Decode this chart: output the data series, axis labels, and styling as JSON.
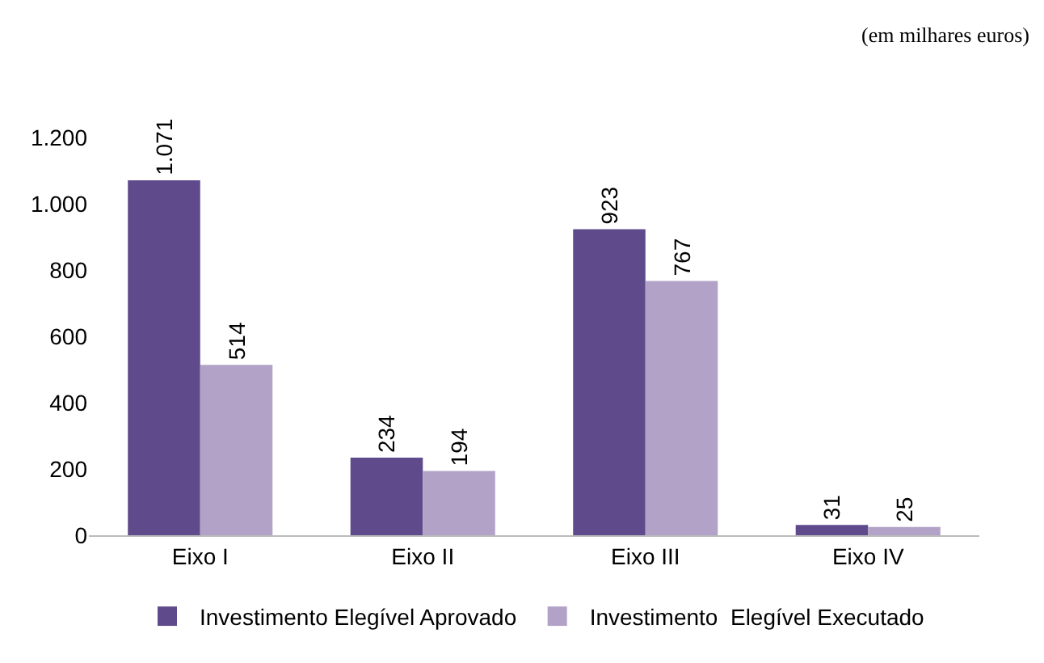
{
  "chart_data": {
    "type": "bar",
    "categories": [
      "Eixo I",
      "Eixo II",
      "Eixo III",
      "Eixo IV"
    ],
    "series": [
      {
        "name": "Investimento Elegível Aprovado",
        "color": "#5f4b8b",
        "values": [
          1071,
          234,
          923,
          31
        ],
        "value_labels": [
          "1.071",
          "234",
          "923",
          "31"
        ]
      },
      {
        "name": "Investimento  Elegível Executado",
        "color": "#b3a2c7",
        "values": [
          514,
          194,
          767,
          25
        ],
        "value_labels": [
          "514",
          "194",
          "767",
          "25"
        ]
      }
    ],
    "ylim": [
      0,
      1200
    ],
    "yticks": [
      0,
      200,
      400,
      600,
      800,
      {
        "value": 1000,
        "label": "1.000"
      },
      {
        "value": 1200,
        "label": "1.200"
      }
    ],
    "grid": false,
    "legend": "bottom",
    "annotations": [
      "(em milhares euros)"
    ]
  }
}
